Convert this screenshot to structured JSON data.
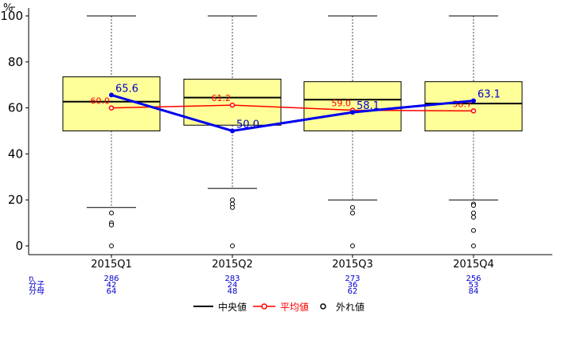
{
  "chart_data": {
    "type": "box",
    "y_unit": "%",
    "ylim": [
      0,
      100
    ],
    "y_ticks": [
      0,
      20,
      40,
      60,
      80,
      100
    ],
    "categories": [
      "2015Q1",
      "2015Q2",
      "2015Q3",
      "2015Q4"
    ],
    "boxes": [
      {
        "whisker_low": 16.7,
        "q1": 50.0,
        "median": 62.7,
        "q3": 73.5,
        "whisker_high": 100,
        "outliers": [
          14.3,
          10.0,
          9.1,
          0
        ]
      },
      {
        "whisker_low": 25.0,
        "q1": 52.5,
        "median": 64.5,
        "q3": 72.5,
        "whisker_high": 100,
        "outliers": [
          20.0,
          18.2,
          16.7,
          0
        ]
      },
      {
        "whisker_low": 20.0,
        "q1": 50.0,
        "median": 63.6,
        "q3": 71.4,
        "whisker_high": 100,
        "outliers": [
          16.7,
          14.3,
          0
        ]
      },
      {
        "whisker_low": 20.0,
        "q1": 50.0,
        "median": 61.9,
        "q3": 71.4,
        "whisker_high": 100,
        "outliers": [
          18.2,
          17.6,
          14.3,
          12.5,
          6.7,
          0
        ]
      }
    ],
    "mean": {
      "name": "平均値",
      "values": [
        60.0,
        61.2,
        59.0,
        58.7
      ],
      "labels": [
        "60.0",
        "61.2",
        "59.0",
        "58.7"
      ]
    },
    "ratio": {
      "values": [
        65.6,
        50.0,
        58.1,
        63.1
      ],
      "labels": [
        "65.6",
        "50.0",
        "58.1",
        "63.1"
      ]
    },
    "stats": {
      "row_labels": [
        "n",
        "分子",
        "分母"
      ],
      "n": [
        "286",
        "283",
        "273",
        "256"
      ],
      "numerator": [
        "42",
        "24",
        "36",
        "53"
      ],
      "denominator": [
        "64",
        "48",
        "62",
        "84"
      ]
    },
    "legend": [
      {
        "name": "中央値",
        "color": "#000000"
      },
      {
        "name": "平均値",
        "color": "#ff0000"
      },
      {
        "name": "外れ値",
        "color": "#000000"
      }
    ],
    "colors": {
      "box_fill": "#ffff99",
      "mean": "#ff0000",
      "ratio": "#0000ee",
      "stats": "#0000cc"
    }
  }
}
